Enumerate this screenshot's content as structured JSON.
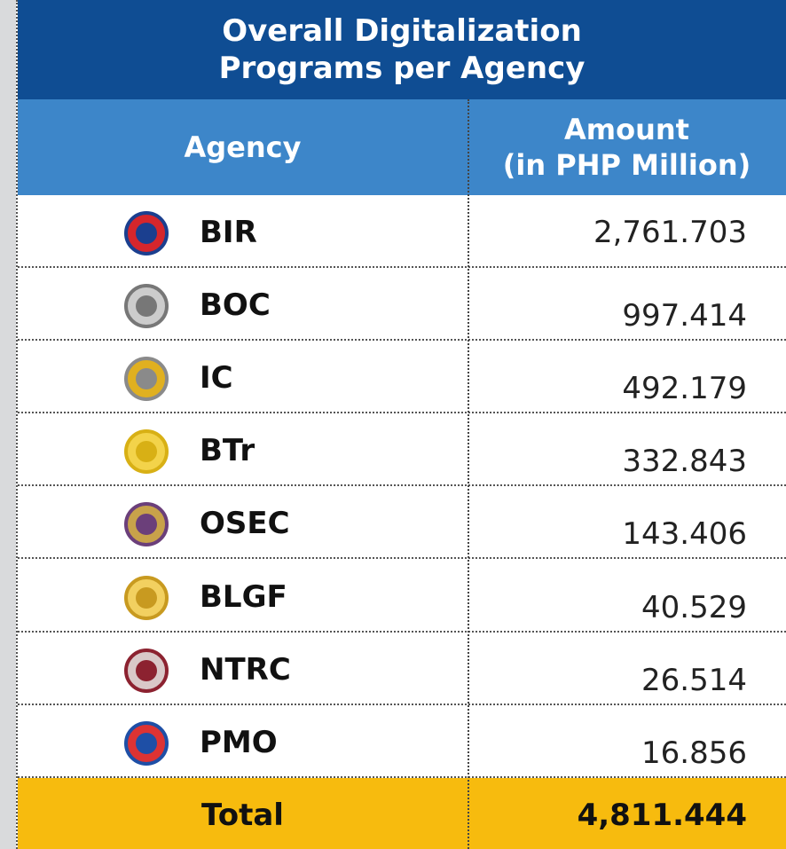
{
  "title": {
    "line1": "Overall Digitalization",
    "line2": "Programs per Agency"
  },
  "header": {
    "agency": "Agency",
    "amount_line1": "Amount",
    "amount_line2": "(in PHP Million)"
  },
  "rows": [
    {
      "agency": "BIR",
      "amount": "2,761.703"
    },
    {
      "agency": "BOC",
      "amount": "997.414"
    },
    {
      "agency": "IC",
      "amount": "492.179"
    },
    {
      "agency": "BTr",
      "amount": "332.843"
    },
    {
      "agency": "OSEC",
      "amount": "143.406"
    },
    {
      "agency": "BLGF",
      "amount": "40.529"
    },
    {
      "agency": "NTRC",
      "amount": "26.514"
    },
    {
      "agency": "PMO",
      "amount": "16.856"
    }
  ],
  "total": {
    "label": "Total",
    "amount": "4,811.444"
  }
}
